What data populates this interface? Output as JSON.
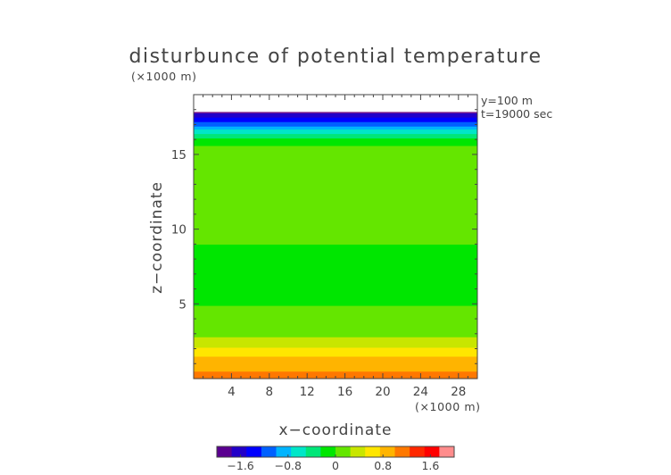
{
  "chart_data": {
    "type": "heatmap",
    "title": "disturbunce of potential temperature",
    "y_unit_label": "(×1000 m)",
    "x_unit_label": "(×1000 m)",
    "xlabel": "x−coordinate",
    "ylabel": "z−coordinate",
    "annotations": [
      "y=100 m",
      "t=19000 sec"
    ],
    "xlim": [
      0,
      30
    ],
    "ylim": [
      0,
      19
    ],
    "x_ticks": [
      {
        "value": 4,
        "label": "4"
      },
      {
        "value": 8,
        "label": "8"
      },
      {
        "value": 12,
        "label": "12"
      },
      {
        "value": 16,
        "label": "16"
      },
      {
        "value": 20,
        "label": "20"
      },
      {
        "value": 24,
        "label": "24"
      },
      {
        "value": 28,
        "label": "28"
      }
    ],
    "y_ticks": [
      {
        "value": 5,
        "label": "5"
      },
      {
        "value": 10,
        "label": "10"
      },
      {
        "value": 15,
        "label": "15"
      }
    ],
    "data_top_z": 17.8,
    "z_profile": [
      {
        "z": 0.0,
        "value": 1.1
      },
      {
        "z": 0.5,
        "value": 1.0
      },
      {
        "z": 1.0,
        "value": 0.9
      },
      {
        "z": 1.5,
        "value": 0.75
      },
      {
        "z": 2.0,
        "value": 0.55
      },
      {
        "z": 2.5,
        "value": 0.35
      },
      {
        "z": 3.0,
        "value": 0.2
      },
      {
        "z": 3.5,
        "value": 0.1
      },
      {
        "z": 4.5,
        "value": 0.02
      },
      {
        "z": 6.0,
        "value": -0.05
      },
      {
        "z": 7.5,
        "value": -0.02
      },
      {
        "z": 9.0,
        "value": 0.0
      },
      {
        "z": 10.5,
        "value": 0.05
      },
      {
        "z": 12.0,
        "value": 0.05
      },
      {
        "z": 13.5,
        "value": 0.08
      },
      {
        "z": 14.5,
        "value": 0.1
      },
      {
        "z": 15.5,
        "value": 0.05
      },
      {
        "z": 16.0,
        "value": -0.2
      },
      {
        "z": 16.5,
        "value": -0.6
      },
      {
        "z": 17.0,
        "value": -1.1
      },
      {
        "z": 17.5,
        "value": -1.5
      },
      {
        "z": 17.8,
        "value": -1.8
      }
    ],
    "colorbar": {
      "range": [
        -2.0,
        2.0
      ],
      "ticks": [
        {
          "value": -1.6,
          "label": "−1.6"
        },
        {
          "value": -0.8,
          "label": "−0.8"
        },
        {
          "value": 0,
          "label": "0"
        },
        {
          "value": 0.8,
          "label": "0.8"
        },
        {
          "value": 1.6,
          "label": "1.6"
        }
      ],
      "colors": [
        "#5a0090",
        "#2200c8",
        "#0000ff",
        "#0060ff",
        "#00b4ff",
        "#00e6c8",
        "#00e678",
        "#00e600",
        "#64e600",
        "#c8e600",
        "#ffe600",
        "#ffb400",
        "#ff7800",
        "#ff2800",
        "#ff0000",
        "#ff8c8c"
      ]
    }
  }
}
